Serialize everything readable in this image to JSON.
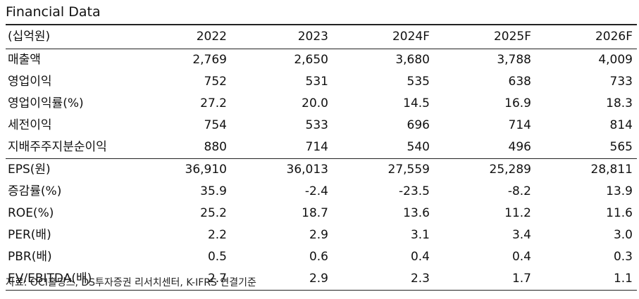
{
  "title": "Financial Data",
  "table": {
    "header": [
      "(십억원)",
      "2022",
      "2023",
      "2024F",
      "2025F",
      "2026F"
    ],
    "rows": [
      [
        "매출액",
        "2,769",
        "2,650",
        "3,680",
        "3,788",
        "4,009"
      ],
      [
        "영업이익",
        "752",
        "531",
        "535",
        "638",
        "733"
      ],
      [
        "영업이익률(%)",
        "27.2",
        "20.0",
        "14.5",
        "16.9",
        "18.3"
      ],
      [
        "세전이익",
        "754",
        "533",
        "696",
        "714",
        "814"
      ],
      [
        "지배주주지분순이익",
        "880",
        "714",
        "540",
        "496",
        "565"
      ],
      [
        "EPS(원)",
        "36,910",
        "36,013",
        "27,559",
        "25,289",
        "28,811"
      ],
      [
        "증감률(%)",
        "35.9",
        "-2.4",
        "-23.5",
        "-8.2",
        "13.9"
      ],
      [
        "ROE(%)",
        "25.2",
        "18.7",
        "13.6",
        "11.2",
        "11.6"
      ],
      [
        "PER(배)",
        "2.2",
        "2.9",
        "3.1",
        "3.4",
        "3.0"
      ],
      [
        "PBR(배)",
        "0.5",
        "0.6",
        "0.4",
        "0.4",
        "0.3"
      ],
      [
        "EV/EBITDA(배)",
        "2.7",
        "2.9",
        "2.3",
        "1.7",
        "1.1"
      ]
    ]
  },
  "source": "자료: OCI홀딩스, DS투자증권 리서치센터, K-IFRS 연결기준"
}
